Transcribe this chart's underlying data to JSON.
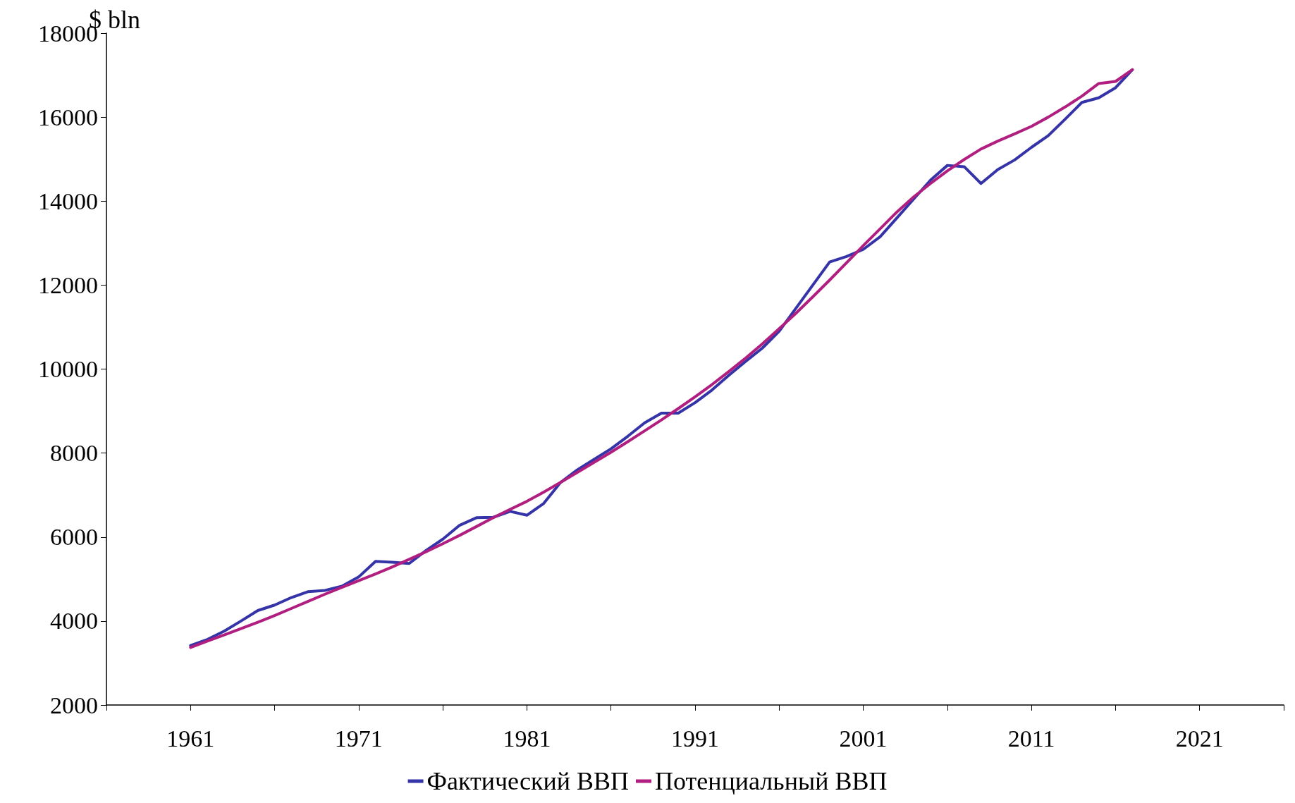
{
  "chart_data": {
    "type": "line",
    "ylabel": "$ bln",
    "x": [
      1961,
      1962,
      1963,
      1964,
      1965,
      1966,
      1967,
      1968,
      1969,
      1970,
      1971,
      1972,
      1973,
      1974,
      1975,
      1976,
      1977,
      1978,
      1979,
      1980,
      1981,
      1982,
      1983,
      1984,
      1985,
      1986,
      1987,
      1988,
      1989,
      1990,
      1991,
      1992,
      1993,
      1994,
      1995,
      1996,
      1997,
      1998,
      1999,
      2000,
      2001,
      2002,
      2003,
      2004,
      2005,
      2006,
      2007,
      2008,
      2009,
      2010,
      2011,
      2012,
      2013,
      2014,
      2015,
      2016,
      2017
    ],
    "series": [
      {
        "name": "Фактический ВВП",
        "color": "#3434a8",
        "values": [
          3415,
          3560,
          3760,
          4000,
          4250,
          4380,
          4560,
          4700,
          4730,
          4830,
          5050,
          5420,
          5400,
          5370,
          5680,
          5950,
          6280,
          6460,
          6470,
          6610,
          6520,
          6800,
          7300,
          7600,
          7850,
          8100,
          8400,
          8720,
          8950,
          8950,
          9200,
          9500,
          9850,
          10180,
          10500,
          10900,
          11450,
          12000,
          12550,
          12680,
          12850,
          13150,
          13600,
          14050,
          14500,
          14850,
          14820,
          14420,
          14750,
          14980,
          15280,
          15560,
          15950,
          16350,
          16460,
          16700,
          17130
        ]
      },
      {
        "name": "Потенциальный ВВП",
        "color": "#b01e80",
        "values": [
          3370,
          3520,
          3670,
          3820,
          3970,
          4130,
          4300,
          4470,
          4640,
          4800,
          4960,
          5120,
          5290,
          5470,
          5650,
          5840,
          6040,
          6250,
          6460,
          6660,
          6850,
          7070,
          7300,
          7540,
          7780,
          8020,
          8270,
          8530,
          8790,
          9060,
          9340,
          9630,
          9940,
          10260,
          10600,
          10960,
          11330,
          11720,
          12120,
          12530,
          12940,
          13340,
          13740,
          14100,
          14420,
          14720,
          14990,
          15240,
          15430,
          15600,
          15780,
          16000,
          16240,
          16500,
          16800,
          16850,
          17130
        ]
      }
    ],
    "xlim": [
      1956,
      2026
    ],
    "xticks": [
      {
        "value": 1956,
        "label": null
      },
      1961,
      {
        "value": 1966,
        "label": null
      },
      1971,
      {
        "value": 1976,
        "label": null
      },
      1981,
      {
        "value": 1986,
        "label": null
      },
      1991,
      {
        "value": 1996,
        "label": null
      },
      2001,
      {
        "value": 2006,
        "label": null
      },
      2011,
      {
        "value": 2016,
        "label": null
      },
      2021,
      {
        "value": 2026,
        "label": null
      }
    ],
    "ylim": [
      2000,
      18000
    ],
    "yticks": [
      2000,
      4000,
      6000,
      8000,
      10000,
      12000,
      14000,
      16000,
      18000
    ],
    "grid": false,
    "legend": "bottom",
    "marker": "none",
    "line_style": "solid"
  }
}
